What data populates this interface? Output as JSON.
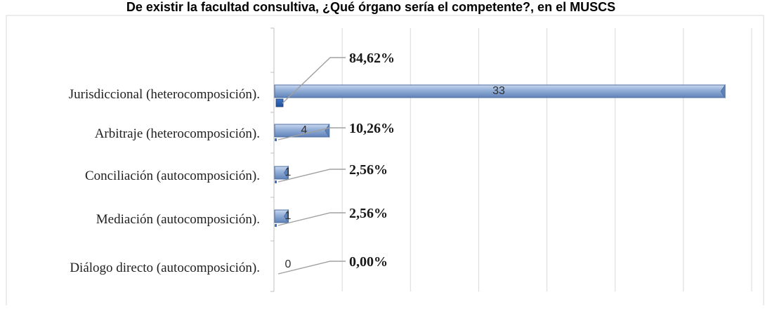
{
  "colors": {
    "bar_fill": "#8aa8d4",
    "bar_stroke": "#4f6f9f",
    "bar_face": "#6f90c4",
    "grid": "#d9d9d9",
    "axis": "#bfbfbf",
    "leader": "#a0a0a0",
    "frame": "#d9d9d9"
  },
  "chart_data": {
    "type": "bar",
    "orientation": "horizontal",
    "title": "De existir la facultad consultiva, ¿Qué órgano sería el competente?, en el MUSCS",
    "categories": [
      "Jurisdiccional (heterocomposición).",
      "Arbitraje (heterocomposición).",
      "Conciliación (autocomposición).",
      "Mediación (autocomposición).",
      "Diálogo directo (autocomposición)."
    ],
    "series": [
      {
        "values": [
          33,
          4,
          1,
          1,
          0
        ],
        "value_labels": [
          "33",
          "4",
          "1",
          "1",
          "0"
        ]
      },
      {
        "values": [
          84.62,
          10.26,
          2.56,
          2.56,
          0.0
        ],
        "value_labels": [
          "84,62%",
          "10,26%",
          "2,56%",
          "2,56%",
          "0,00%"
        ]
      }
    ],
    "xlim": [
      0,
      35
    ],
    "grid": true,
    "legend": "none"
  }
}
